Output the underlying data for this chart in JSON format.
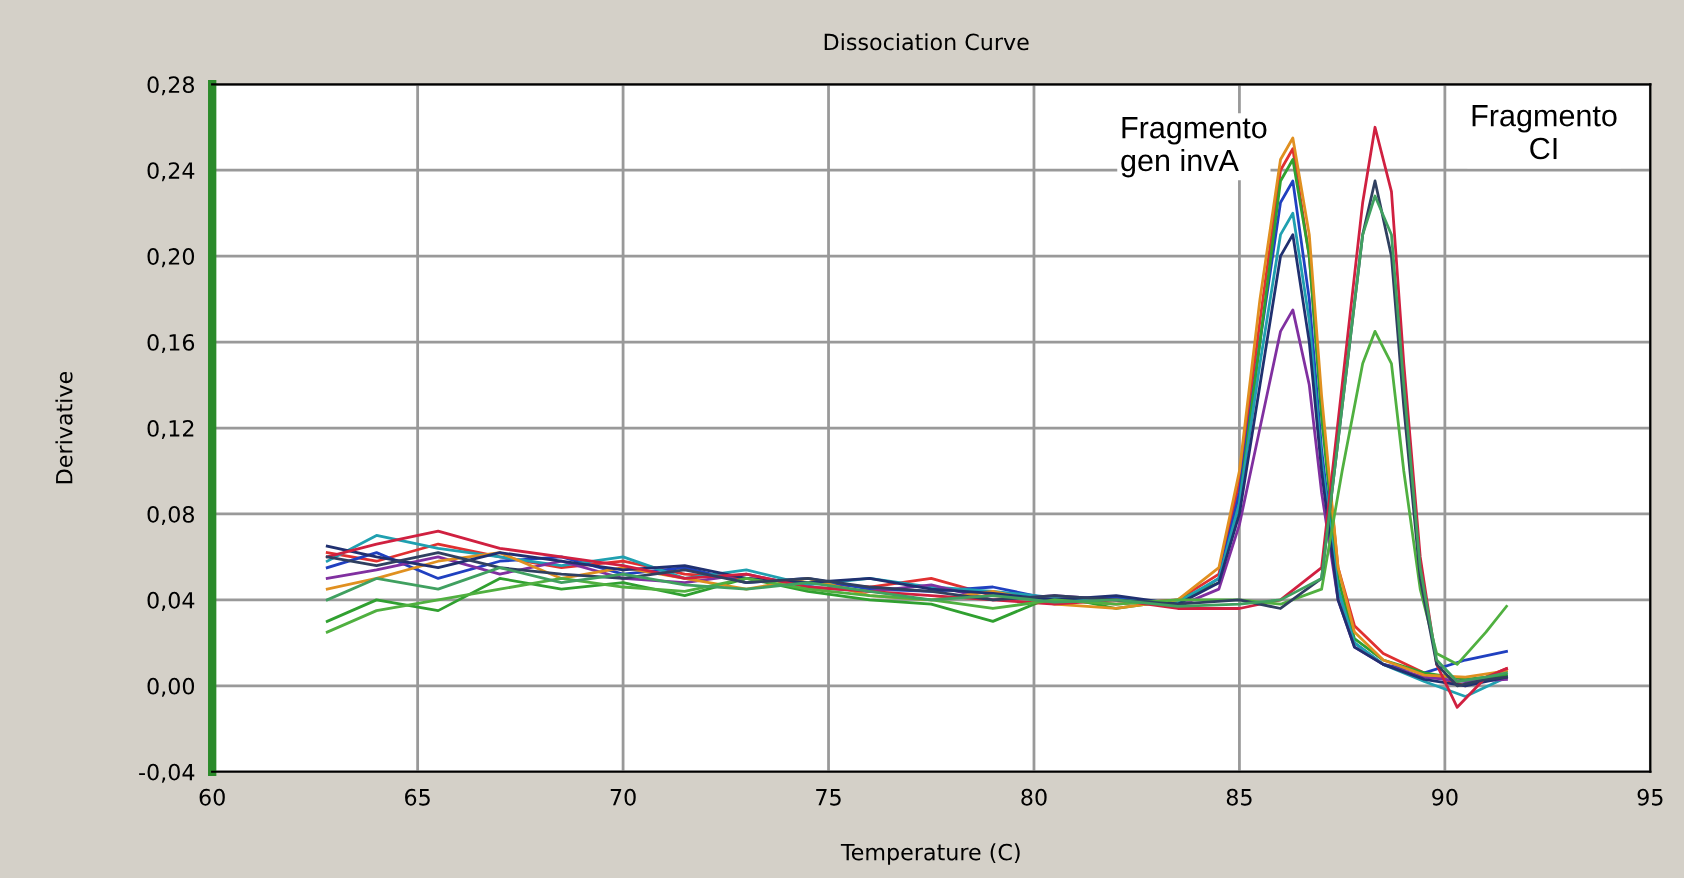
{
  "chart_data": {
    "type": "line",
    "title": "Dissociation Curve",
    "xlabel": "Temperature (C)",
    "ylabel": "Derivative",
    "xlim": [
      60,
      95
    ],
    "xticks": [
      60,
      65,
      70,
      75,
      80,
      85,
      90,
      95
    ],
    "ylim": [
      -0.04,
      0.28
    ],
    "yticks": [
      {
        "value": -0.04,
        "label": "-0,04"
      },
      {
        "value": 0,
        "label": "0,00"
      },
      {
        "value": 0.04,
        "label": "0,04"
      },
      {
        "value": 0.08,
        "label": "0,08"
      },
      {
        "value": 0.12,
        "label": "0,12"
      },
      {
        "value": 0.16,
        "label": "0,16"
      },
      {
        "value": 0.2,
        "label": "0,20"
      },
      {
        "value": 0.24,
        "label": "0,24"
      },
      {
        "value": 0.28,
        "label": "0,28"
      }
    ],
    "grid": true,
    "legend": false,
    "annotations": [
      "Fragmento\ngen invA",
      "Fragmento\nCI"
    ],
    "series": [
      {
        "color": "#e03030",
        "x": [
          62.8,
          64,
          65.5,
          67,
          68.5,
          70,
          71.5,
          73,
          74.5,
          76,
          77.5,
          79,
          80.5,
          82,
          83.5,
          84.5,
          85,
          85.5,
          86,
          86.3,
          86.7,
          87,
          87.4,
          87.8,
          88.5,
          89.5,
          90.5,
          91.5
        ],
        "values": [
          0.062,
          0.058,
          0.066,
          0.06,
          0.055,
          0.058,
          0.052,
          0.05,
          0.048,
          0.046,
          0.05,
          0.042,
          0.04,
          0.038,
          0.04,
          0.052,
          0.095,
          0.17,
          0.24,
          0.25,
          0.2,
          0.13,
          0.055,
          0.028,
          0.015,
          0.006,
          0.0,
          0.008
        ]
      },
      {
        "color": "#2040c0",
        "x": [
          62.8,
          64,
          65.5,
          67,
          68.5,
          70,
          71.5,
          73,
          74.5,
          76,
          77.5,
          79,
          80.5,
          82,
          83.5,
          84.5,
          85,
          85.5,
          86,
          86.3,
          86.7,
          87,
          87.4,
          87.8,
          88.5,
          89.5,
          90.5,
          91.5
        ],
        "values": [
          0.055,
          0.062,
          0.05,
          0.058,
          0.06,
          0.052,
          0.055,
          0.048,
          0.05,
          0.045,
          0.044,
          0.046,
          0.04,
          0.041,
          0.038,
          0.05,
          0.09,
          0.16,
          0.225,
          0.235,
          0.18,
          0.11,
          0.045,
          0.02,
          0.01,
          0.006,
          0.012,
          0.016
        ]
      },
      {
        "color": "#30a030",
        "x": [
          62.8,
          64,
          65.5,
          67,
          68.5,
          70,
          71.5,
          73,
          74.5,
          76,
          77.5,
          79,
          80.5,
          82,
          83.5,
          84.5,
          85,
          85.5,
          86,
          86.3,
          86.7,
          87,
          87.4,
          87.8,
          88.5,
          89.5,
          90.5,
          91.5
        ],
        "values": [
          0.03,
          0.04,
          0.035,
          0.05,
          0.045,
          0.048,
          0.042,
          0.05,
          0.044,
          0.04,
          0.038,
          0.03,
          0.042,
          0.036,
          0.04,
          0.048,
          0.085,
          0.16,
          0.235,
          0.245,
          0.2,
          0.125,
          0.05,
          0.022,
          0.012,
          0.006,
          0.003,
          0.005
        ]
      },
      {
        "color": "#20a0b0",
        "x": [
          62.8,
          64,
          65.5,
          67,
          68.5,
          70,
          71.5,
          73,
          74.5,
          76,
          77.5,
          79,
          80.5,
          82,
          83.5,
          84.5,
          85,
          85.5,
          86,
          86.3,
          86.7,
          87,
          87.4,
          87.8,
          88.5,
          89.5,
          90.5,
          91.5
        ],
        "values": [
          0.058,
          0.07,
          0.064,
          0.06,
          0.056,
          0.06,
          0.05,
          0.054,
          0.047,
          0.05,
          0.046,
          0.044,
          0.041,
          0.04,
          0.039,
          0.05,
          0.085,
          0.15,
          0.21,
          0.22,
          0.17,
          0.105,
          0.045,
          0.02,
          0.01,
          0.002,
          -0.005,
          0.004
        ]
      },
      {
        "color": "#8030a0",
        "x": [
          62.8,
          64,
          65.5,
          67,
          68.5,
          70,
          71.5,
          73,
          74.5,
          76,
          77.5,
          79,
          80.5,
          82,
          83.5,
          84.5,
          85,
          85.5,
          86,
          86.3,
          86.7,
          87,
          87.4,
          87.8,
          88.5,
          89.5,
          90.5,
          91.5
        ],
        "values": [
          0.05,
          0.054,
          0.06,
          0.052,
          0.058,
          0.05,
          0.048,
          0.052,
          0.046,
          0.044,
          0.047,
          0.04,
          0.042,
          0.04,
          0.037,
          0.045,
          0.075,
          0.12,
          0.165,
          0.175,
          0.14,
          0.09,
          0.04,
          0.018,
          0.01,
          0.004,
          0.002,
          0.003
        ]
      },
      {
        "color": "#e09020",
        "x": [
          62.8,
          64,
          65.5,
          67,
          68.5,
          70,
          71.5,
          73,
          74.5,
          76,
          77.5,
          79,
          80.5,
          82,
          83.5,
          84.5,
          85,
          85.5,
          86,
          86.3,
          86.7,
          87,
          87.4,
          87.8,
          88.5,
          89.5,
          90.5,
          91.5
        ],
        "values": [
          0.045,
          0.05,
          0.058,
          0.062,
          0.05,
          0.055,
          0.05,
          0.045,
          0.05,
          0.042,
          0.04,
          0.044,
          0.038,
          0.036,
          0.04,
          0.055,
          0.1,
          0.18,
          0.245,
          0.255,
          0.21,
          0.135,
          0.055,
          0.025,
          0.012,
          0.005,
          0.004,
          0.007
        ]
      },
      {
        "color": "#203070",
        "x": [
          62.8,
          64,
          65.5,
          67,
          68.5,
          70,
          71.5,
          73,
          74.5,
          76,
          77.5,
          79,
          80.5,
          82,
          83.5,
          84.5,
          85,
          85.5,
          86,
          86.3,
          86.7,
          87,
          87.4,
          87.8,
          88.5,
          89.5,
          90.5,
          91.5
        ],
        "values": [
          0.065,
          0.06,
          0.055,
          0.062,
          0.058,
          0.054,
          0.056,
          0.05,
          0.048,
          0.05,
          0.045,
          0.043,
          0.04,
          0.042,
          0.038,
          0.048,
          0.08,
          0.14,
          0.2,
          0.21,
          0.16,
          0.1,
          0.04,
          0.018,
          0.01,
          0.003,
          0.0,
          0.004
        ]
      },
      {
        "color": "#d02040",
        "x": [
          62.8,
          64,
          65.5,
          67,
          68.5,
          70,
          71.5,
          73,
          74.5,
          76,
          77.5,
          79,
          80.5,
          82,
          83.5,
          85,
          86,
          87,
          87.5,
          88,
          88.3,
          88.7,
          89,
          89.4,
          89.8,
          90.3,
          91,
          91.5
        ],
        "values": [
          0.06,
          0.066,
          0.072,
          0.064,
          0.06,
          0.056,
          0.05,
          0.052,
          0.046,
          0.044,
          0.042,
          0.04,
          0.038,
          0.04,
          0.036,
          0.036,
          0.04,
          0.055,
          0.14,
          0.225,
          0.26,
          0.23,
          0.15,
          0.06,
          0.01,
          -0.01,
          0.004,
          0.008
        ]
      },
      {
        "color": "#50b040",
        "x": [
          62.8,
          64,
          65.5,
          67,
          68.5,
          70,
          71.5,
          73,
          74.5,
          76,
          77.5,
          79,
          80.5,
          82,
          83.5,
          85,
          86,
          87,
          87.5,
          88,
          88.3,
          88.7,
          89,
          89.4,
          89.8,
          90.3,
          91,
          91.5
        ],
        "values": [
          0.025,
          0.035,
          0.04,
          0.045,
          0.05,
          0.046,
          0.044,
          0.05,
          0.045,
          0.042,
          0.04,
          0.036,
          0.04,
          0.038,
          0.04,
          0.04,
          0.038,
          0.045,
          0.1,
          0.15,
          0.165,
          0.15,
          0.1,
          0.045,
          0.015,
          0.01,
          0.025,
          0.037
        ]
      },
      {
        "color": "#304060",
        "x": [
          62.8,
          64,
          65.5,
          67,
          68.5,
          70,
          71.5,
          73,
          74.5,
          76,
          77.5,
          79,
          80.5,
          82,
          83.5,
          85,
          86,
          87,
          87.5,
          88,
          88.3,
          88.7,
          89,
          89.4,
          89.8,
          90.3,
          91,
          91.5
        ],
        "values": [
          0.06,
          0.056,
          0.062,
          0.055,
          0.052,
          0.05,
          0.054,
          0.048,
          0.05,
          0.046,
          0.044,
          0.04,
          0.042,
          0.04,
          0.038,
          0.04,
          0.036,
          0.05,
          0.13,
          0.21,
          0.235,
          0.2,
          0.13,
          0.05,
          0.01,
          0.0,
          0.003,
          0.004
        ]
      },
      {
        "color": "#40a060",
        "x": [
          62.8,
          64,
          65.5,
          67,
          68.5,
          70,
          71.5,
          73,
          74.5,
          76,
          77.5,
          79,
          80.5,
          82,
          83.5,
          85,
          86,
          87,
          87.5,
          88,
          88.3,
          88.7,
          89,
          89.4,
          89.8,
          90.3,
          91,
          91.5
        ],
        "values": [
          0.04,
          0.05,
          0.045,
          0.055,
          0.048,
          0.052,
          0.047,
          0.045,
          0.048,
          0.044,
          0.04,
          0.042,
          0.039,
          0.04,
          0.037,
          0.038,
          0.04,
          0.05,
          0.13,
          0.21,
          0.228,
          0.21,
          0.14,
          0.055,
          0.012,
          0.002,
          0.004,
          0.006
        ]
      }
    ]
  }
}
